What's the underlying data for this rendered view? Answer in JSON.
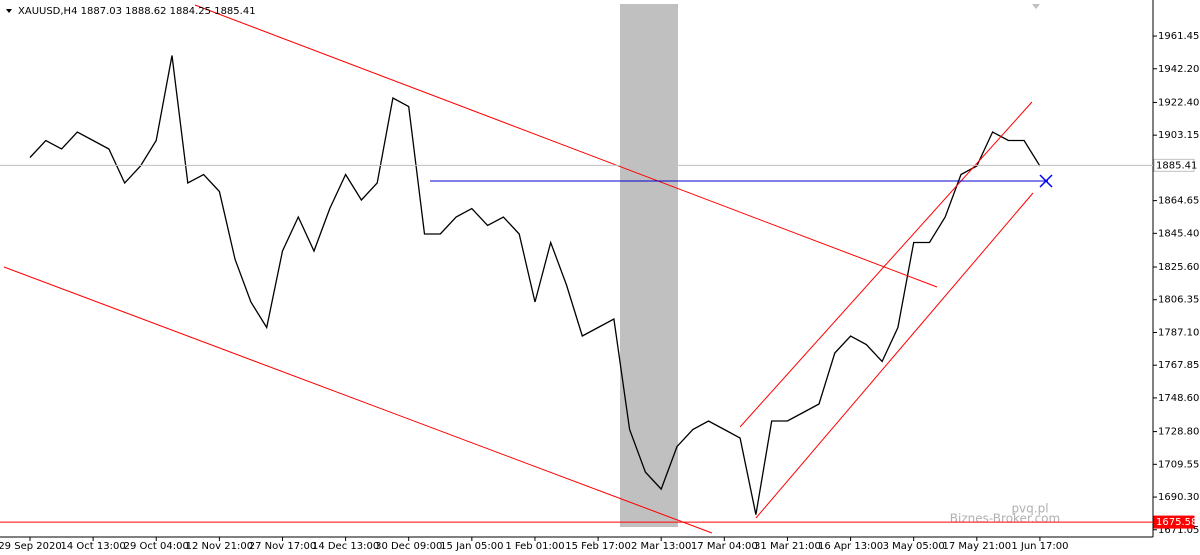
{
  "chart_data": {
    "type": "line",
    "title": "XAUUSD,H4  1887.03 1888.62 1884.25 1885.41",
    "categories": [
      "29 Sep 2020",
      null,
      null,
      null,
      "14 Oct 13:00",
      null,
      null,
      null,
      "29 Oct 04:00",
      null,
      null,
      null,
      "12 Nov 21:00",
      null,
      null,
      null,
      "27 Nov 17:00",
      null,
      null,
      null,
      "14 Dec 13:00",
      null,
      null,
      null,
      "30 Dec 09:00",
      null,
      null,
      null,
      "15 Jan 05:00",
      null,
      null,
      null,
      "1 Feb 01:00",
      null,
      null,
      null,
      "15 Feb 17:00",
      null,
      null,
      null,
      "2 Mar 13:00",
      null,
      null,
      null,
      "17 Mar 04:00",
      null,
      null,
      null,
      "31 Mar 21:00",
      null,
      null,
      null,
      "16 Apr 13:00",
      null,
      null,
      null,
      "3 May 05:00",
      null,
      null,
      null,
      "17 May 21:00",
      null,
      null,
      null,
      "1 Jun 17:00"
    ],
    "series": [
      {
        "color": "#000000",
        "values": [
          1890,
          1900,
          1895,
          1905,
          1900,
          1895,
          1875,
          1885,
          1900,
          1950,
          1875,
          1880,
          1870,
          1830,
          1805,
          1790,
          1835,
          1855,
          1835,
          1860,
          1880,
          1865,
          1875,
          1925,
          1920,
          1845,
          1845,
          1855,
          1860,
          1850,
          1855,
          1845,
          1805,
          1840,
          1815,
          1785,
          1790,
          1795,
          1730,
          1705,
          1695,
          1720,
          1730,
          1735,
          1730,
          1725,
          1680,
          1735,
          1735,
          1740,
          1745,
          1775,
          1785,
          1780,
          1770,
          1790,
          1840,
          1840,
          1855,
          1880,
          1885,
          1905,
          1900,
          1900,
          1885
        ]
      }
    ],
    "ylim": [
      1666.8,
      1980.3
    ],
    "yticks": [
      1961.45,
      {
        "value": 1942.2,
        "label": "1942.20"
      },
      {
        "value": 1922.4,
        "label": "1922.40"
      },
      1903.15,
      1864.65,
      {
        "value": 1845.4,
        "label": "1845.40"
      },
      {
        "value": 1825.6,
        "label": "1825.60"
      },
      1806.35,
      {
        "value": 1787.1,
        "label": "1787.10"
      },
      1767.85,
      {
        "value": 1748.6,
        "label": "1748.60"
      },
      {
        "value": 1728.8,
        "label": "1728.80"
      },
      1709.55,
      {
        "value": 1690.3,
        "label": "1690.30"
      },
      1671.05
    ],
    "price_lines": [
      {
        "value": 1885.41,
        "color": "#c0c0c0",
        "label_bg": "#ffffff",
        "label_color": "#000000"
      },
      {
        "value": 1675.58,
        "color": "#ff0000",
        "label_bg": "#ff0000",
        "label_color": "#ffffff"
      }
    ],
    "watermark": [
      "pvq.pl",
      "Biznes-Broker.com"
    ]
  }
}
